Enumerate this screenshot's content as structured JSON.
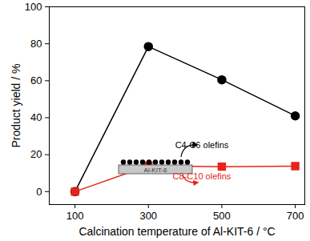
{
  "chart_data": {
    "type": "line",
    "x_label": "Calcination temperature of Al-KIT-6 / °C",
    "y_label": "Product yield / %",
    "x": [
      100,
      300,
      500,
      700
    ],
    "series": [
      {
        "name": "C4-C6 olefins",
        "color": "#000000",
        "marker": "circle",
        "line_style": "solid",
        "values": [
          0,
          78.5,
          60.5,
          41
        ]
      },
      {
        "name": "C8-C10 olefins",
        "color": "#e8231a",
        "marker": "square",
        "line_style": "solid",
        "values": [
          0,
          14,
          13.5,
          13.8
        ]
      }
    ],
    "xlim": [
      30,
      726
    ],
    "xticks": [
      100,
      300,
      500,
      700
    ],
    "ylim": [
      -7,
      100
    ],
    "yticks": [
      0,
      20,
      40,
      60,
      80,
      100
    ],
    "grid": false,
    "annotations": [
      "Al-KIT-6",
      "C4-C6 olefins",
      "C8-C10 olefins"
    ]
  }
}
